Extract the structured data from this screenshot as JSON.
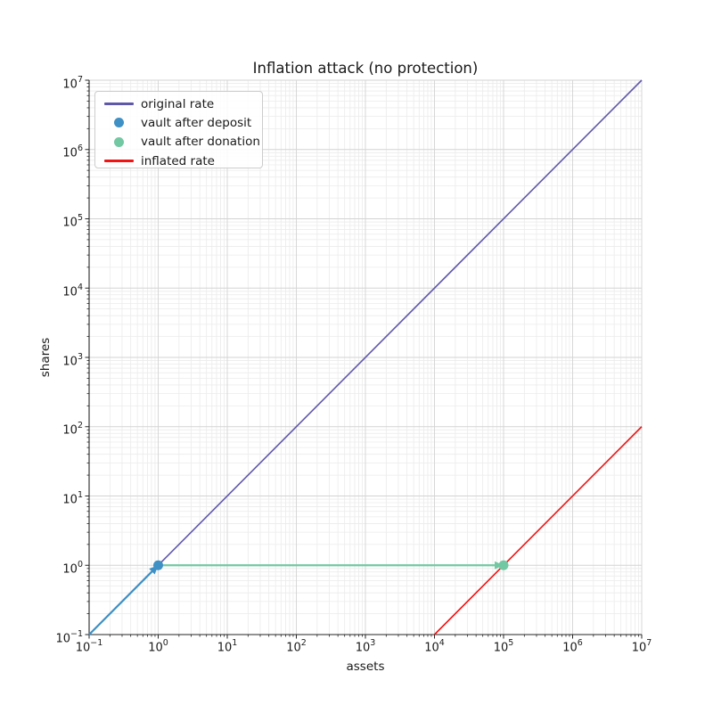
{
  "chart_data": {
    "type": "line",
    "title": "Inflation attack (no protection)",
    "xlabel": "assets",
    "ylabel": "shares",
    "xscale": "log",
    "yscale": "log",
    "xlog_range": [
      -1,
      7
    ],
    "ylog_range": [
      -1,
      7
    ],
    "x_tick_exponents": [
      -1,
      0,
      1,
      2,
      3,
      4,
      5,
      6,
      7
    ],
    "y_tick_exponents": [
      -1,
      0,
      1,
      2,
      3,
      4,
      5,
      6,
      7
    ],
    "grid": {
      "major_color": "#d3d3d3",
      "minor_color": "#ebebeb",
      "on": true
    },
    "legend_position": "upper-left",
    "series": [
      {
        "name": "original rate",
        "kind": "line",
        "color": "#5f58aa",
        "width": 1.6,
        "points": [
          [
            0.1,
            0.1
          ],
          [
            10000000,
            10000000
          ]
        ]
      },
      {
        "name": "vault after deposit",
        "kind": "scatter",
        "color": "#3f90c4",
        "radius": 5.5,
        "points": [
          [
            1,
            1
          ]
        ]
      },
      {
        "name": "vault after donation",
        "kind": "scatter",
        "color": "#72c8a2",
        "radius": 5.5,
        "points": [
          [
            100000,
            1
          ]
        ]
      },
      {
        "name": "inflated rate",
        "kind": "line",
        "color": "#f01414",
        "width": 1.6,
        "points": [
          [
            10000,
            0.1
          ],
          [
            10000000,
            100
          ]
        ]
      }
    ],
    "annotations": [
      {
        "kind": "arrow",
        "label": "deposit-arrow",
        "color": "#3f90c4",
        "from": [
          0.1,
          0.1
        ],
        "to": [
          1,
          1
        ],
        "width": 2.2
      },
      {
        "kind": "arrow",
        "label": "donation-arrow",
        "color": "#72c8a2",
        "from": [
          1,
          1
        ],
        "to": [
          100000,
          1
        ],
        "width": 2.2
      }
    ]
  }
}
